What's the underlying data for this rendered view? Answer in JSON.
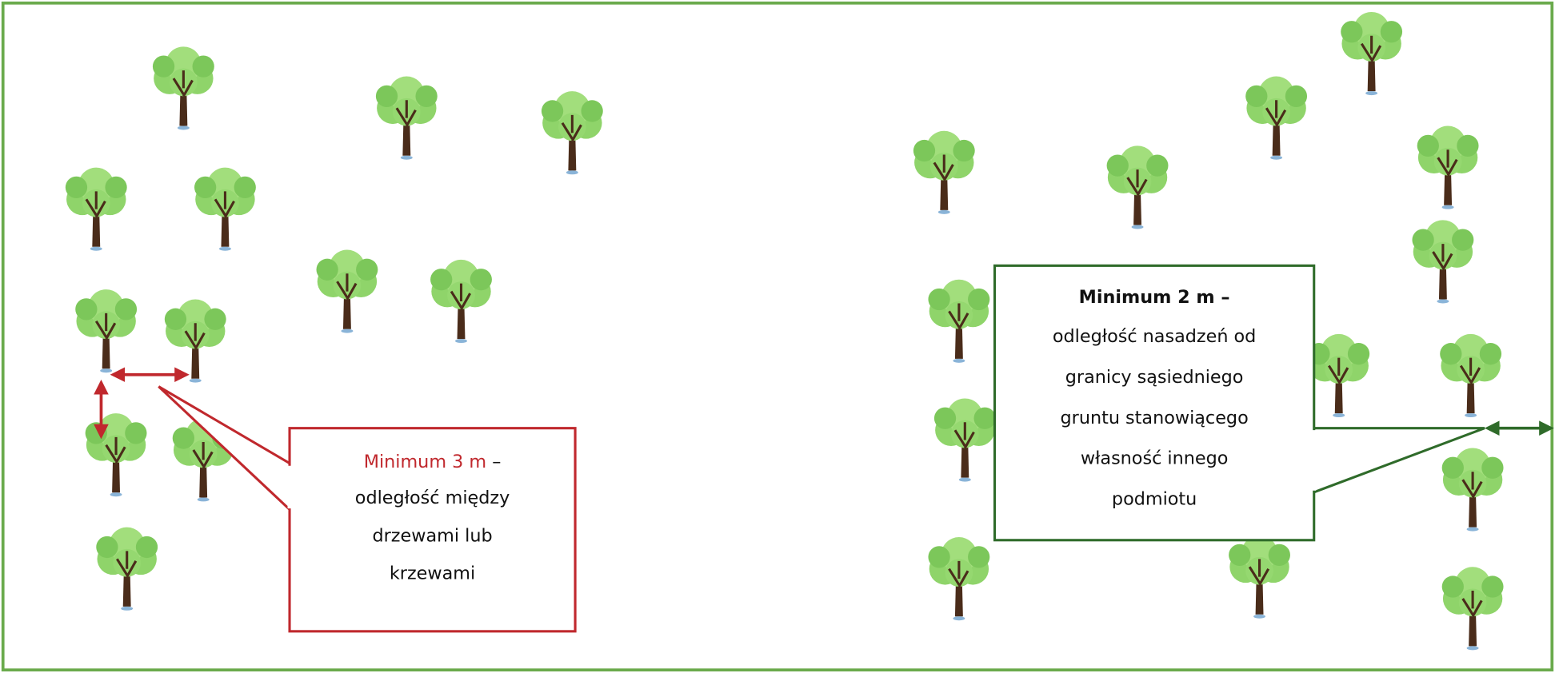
{
  "callouts": [
    {
      "highlight": "Minimum 3 m",
      "suffix": "–",
      "lines": [
        "odległość między",
        "drzewami lub",
        "krzewami"
      ]
    },
    {
      "highlight": "Minimum 2 m",
      "suffix": "–",
      "lines": [
        "odległość nasadzeń od",
        "granicy sąsiedniego",
        "gruntu stanowiącego",
        "własność innego",
        "podmiotu"
      ]
    }
  ]
}
